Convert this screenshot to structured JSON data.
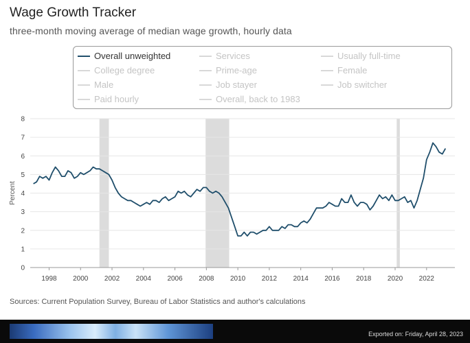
{
  "header": {
    "title": "Wage Growth Tracker",
    "subtitle": "three-month moving average of median wage growth, hourly data"
  },
  "legend": {
    "items": [
      {
        "label": "Overall unweighted",
        "active": true
      },
      {
        "label": "Services",
        "active": false
      },
      {
        "label": "Usually full-time",
        "active": false
      },
      {
        "label": "College degree",
        "active": false
      },
      {
        "label": "Prime-age",
        "active": false
      },
      {
        "label": "Female",
        "active": false
      },
      {
        "label": "Male",
        "active": false
      },
      {
        "label": "Job stayer",
        "active": false
      },
      {
        "label": "Job switcher",
        "active": false
      },
      {
        "label": "Paid hourly",
        "active": false
      },
      {
        "label": "Overall, back to 1983",
        "active": false
      }
    ]
  },
  "colors": {
    "line": "#1f4e6b",
    "recession": "#dcdcdc",
    "inactive": "#c4c4c4"
  },
  "chart_data": {
    "type": "line",
    "title": "Wage Growth Tracker",
    "subtitle": "three-month moving average of median wage growth, hourly data",
    "xlabel": "",
    "ylabel": "Percent",
    "xlim": [
      1996.8,
      2023.8
    ],
    "ylim": [
      0,
      8
    ],
    "x_ticks": [
      1998,
      2000,
      2002,
      2004,
      2006,
      2008,
      2010,
      2012,
      2014,
      2016,
      2018,
      2020,
      2022
    ],
    "y_ticks": [
      0,
      1,
      2,
      3,
      4,
      5,
      6,
      7,
      8
    ],
    "grid": "horizontal",
    "recessions": [
      [
        2001.2,
        2001.8
      ],
      [
        2007.95,
        2009.45
      ],
      [
        2020.1,
        2020.3
      ]
    ],
    "series": [
      {
        "name": "Overall unweighted",
        "x": [
          1997.0,
          1997.2,
          1997.4,
          1997.6,
          1997.8,
          1998.0,
          1998.2,
          1998.4,
          1998.6,
          1998.8,
          1999.0,
          1999.2,
          1999.4,
          1999.6,
          1999.8,
          2000.0,
          2000.2,
          2000.4,
          2000.6,
          2000.8,
          2001.0,
          2001.2,
          2001.4,
          2001.6,
          2001.8,
          2002.0,
          2002.2,
          2002.4,
          2002.6,
          2002.8,
          2003.0,
          2003.2,
          2003.4,
          2003.6,
          2003.8,
          2004.0,
          2004.2,
          2004.4,
          2004.6,
          2004.8,
          2005.0,
          2005.2,
          2005.4,
          2005.6,
          2005.8,
          2006.0,
          2006.2,
          2006.4,
          2006.6,
          2006.8,
          2007.0,
          2007.2,
          2007.4,
          2007.6,
          2007.8,
          2008.0,
          2008.2,
          2008.4,
          2008.6,
          2008.8,
          2009.0,
          2009.2,
          2009.4,
          2009.6,
          2009.8,
          2010.0,
          2010.2,
          2010.4,
          2010.6,
          2010.8,
          2011.0,
          2011.2,
          2011.4,
          2011.6,
          2011.8,
          2012.0,
          2012.2,
          2012.4,
          2012.6,
          2012.8,
          2013.0,
          2013.2,
          2013.4,
          2013.6,
          2013.8,
          2014.0,
          2014.2,
          2014.4,
          2014.6,
          2014.8,
          2015.0,
          2015.2,
          2015.4,
          2015.6,
          2015.8,
          2016.0,
          2016.2,
          2016.4,
          2016.6,
          2016.8,
          2017.0,
          2017.2,
          2017.4,
          2017.6,
          2017.8,
          2018.0,
          2018.2,
          2018.4,
          2018.6,
          2018.8,
          2019.0,
          2019.2,
          2019.4,
          2019.6,
          2019.8,
          2020.0,
          2020.2,
          2020.4,
          2020.6,
          2020.8,
          2021.0,
          2021.2,
          2021.4,
          2021.6,
          2021.8,
          2022.0,
          2022.2,
          2022.4,
          2022.6,
          2022.8,
          2023.0,
          2023.2
        ],
        "values": [
          4.5,
          4.6,
          4.9,
          4.8,
          4.9,
          4.7,
          5.1,
          5.4,
          5.2,
          4.9,
          4.9,
          5.2,
          5.1,
          4.8,
          4.9,
          5.1,
          5.0,
          5.1,
          5.2,
          5.4,
          5.3,
          5.3,
          5.2,
          5.1,
          5.0,
          4.7,
          4.3,
          4.0,
          3.8,
          3.7,
          3.6,
          3.6,
          3.5,
          3.4,
          3.3,
          3.4,
          3.5,
          3.4,
          3.6,
          3.6,
          3.5,
          3.7,
          3.8,
          3.6,
          3.7,
          3.8,
          4.1,
          4.0,
          4.1,
          3.9,
          3.8,
          4.0,
          4.2,
          4.1,
          4.3,
          4.3,
          4.1,
          4.0,
          4.1,
          4.0,
          3.8,
          3.5,
          3.2,
          2.7,
          2.2,
          1.7,
          1.7,
          1.9,
          1.7,
          1.9,
          1.9,
          1.8,
          1.9,
          2.0,
          2.0,
          2.2,
          2.0,
          2.0,
          2.0,
          2.2,
          2.1,
          2.3,
          2.3,
          2.2,
          2.2,
          2.4,
          2.5,
          2.4,
          2.6,
          2.9,
          3.2,
          3.2,
          3.2,
          3.3,
          3.5,
          3.4,
          3.3,
          3.3,
          3.7,
          3.5,
          3.5,
          3.9,
          3.5,
          3.3,
          3.5,
          3.5,
          3.4,
          3.1,
          3.3,
          3.6,
          3.9,
          3.7,
          3.8,
          3.6,
          3.9,
          3.6,
          3.6,
          3.7,
          3.8,
          3.5,
          3.6,
          3.2,
          3.6,
          4.2,
          4.8,
          5.8,
          6.2,
          6.7,
          6.5,
          6.2,
          6.1,
          6.4
        ]
      }
    ]
  },
  "footer": {
    "sources": "Sources: Current Population Survey, Bureau of Labor Statistics and author's calculations",
    "exported": "Exported on: Friday, April 28, 2023"
  }
}
